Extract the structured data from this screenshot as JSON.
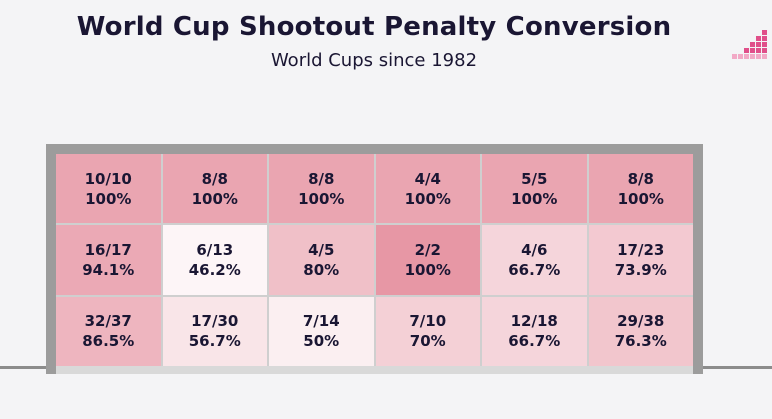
{
  "title": "World Cup Shootout Penalty Conversion",
  "subtitle": "World Cups since 1982",
  "chart_data": {
    "type": "heatmap",
    "title": "World Cup Shootout Penalty Conversion",
    "subtitle": "World Cups since 1982",
    "rows": 3,
    "columns": 6,
    "color_scale": {
      "low": "#ffffff",
      "high": "#e9a0ad"
    },
    "cells": [
      [
        {
          "label": "10/10",
          "pct_label": "100%",
          "scored": 10,
          "taken": 10,
          "value": 100
        },
        {
          "label": "8/8",
          "pct_label": "100%",
          "scored": 8,
          "taken": 8,
          "value": 100
        },
        {
          "label": "8/8",
          "pct_label": "100%",
          "scored": 8,
          "taken": 8,
          "value": 100
        },
        {
          "label": "4/4",
          "pct_label": "100%",
          "scored": 4,
          "taken": 4,
          "value": 100
        },
        {
          "label": "5/5",
          "pct_label": "100%",
          "scored": 5,
          "taken": 5,
          "value": 100
        },
        {
          "label": "8/8",
          "pct_label": "100%",
          "scored": 8,
          "taken": 8,
          "value": 100
        }
      ],
      [
        {
          "label": "16/17",
          "pct_label": "94.1%",
          "scored": 16,
          "taken": 17,
          "value": 94.1
        },
        {
          "label": "6/13",
          "pct_label": "46.2%",
          "scored": 6,
          "taken": 13,
          "value": 46.2
        },
        {
          "label": "4/5",
          "pct_label": "80%",
          "scored": 4,
          "taken": 5,
          "value": 80
        },
        {
          "label": "2/2",
          "pct_label": "100%",
          "scored": 2,
          "taken": 2,
          "value": 100
        },
        {
          "label": "4/6",
          "pct_label": "66.7%",
          "scored": 4,
          "taken": 6,
          "value": 66.7
        },
        {
          "label": "17/23",
          "pct_label": "73.9%",
          "scored": 17,
          "taken": 23,
          "value": 73.9
        }
      ],
      [
        {
          "label": "32/37",
          "pct_label": "86.5%",
          "scored": 32,
          "taken": 37,
          "value": 86.5
        },
        {
          "label": "17/30",
          "pct_label": "56.7%",
          "scored": 17,
          "taken": 30,
          "value": 56.7
        },
        {
          "label": "7/14",
          "pct_label": "50%",
          "scored": 7,
          "taken": 14,
          "value": 50
        },
        {
          "label": "7/10",
          "pct_label": "70%",
          "scored": 7,
          "taken": 10,
          "value": 70
        },
        {
          "label": "12/18",
          "pct_label": "66.7%",
          "scored": 12,
          "taken": 18,
          "value": 66.7
        },
        {
          "label": "29/38",
          "pct_label": "76.3%",
          "scored": 29,
          "taken": 38,
          "value": 76.3
        }
      ]
    ]
  },
  "colors": {
    "title_text": "#1a1633",
    "cell_text": "#1a1633",
    "goal_frame": "#9c9c9c",
    "logo_main": "#e04f8a",
    "logo_light": "#f2a9c6"
  },
  "icons": {
    "logo": "brand-logo-icon"
  }
}
